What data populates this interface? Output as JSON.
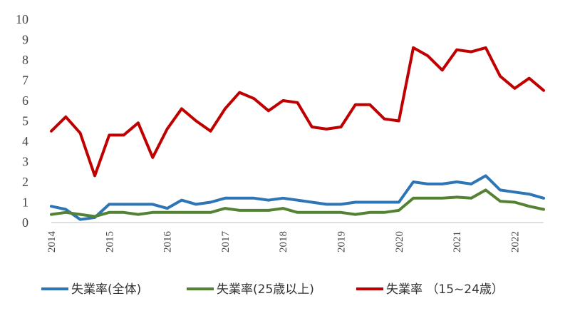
{
  "chart_data": {
    "type": "line",
    "title": "",
    "xlabel": "",
    "ylabel": "",
    "ylim": [
      0,
      10
    ],
    "yticks": [
      "0",
      "1",
      "2",
      "3",
      "4",
      "5",
      "6",
      "7",
      "8",
      "9",
      "10"
    ],
    "year_ticks": [
      "2014",
      "2015",
      "2016",
      "2017",
      "2018",
      "2019",
      "2020",
      "2021",
      "2022"
    ],
    "grid": false,
    "legend_position": "bottom",
    "x": [
      "2014Q1",
      "2014Q2",
      "2014Q3",
      "2014Q4",
      "2015Q1",
      "2015Q2",
      "2015Q3",
      "2015Q4",
      "2016Q1",
      "2016Q2",
      "2016Q3",
      "2016Q4",
      "2017Q1",
      "2017Q2",
      "2017Q3",
      "2017Q4",
      "2018Q1",
      "2018Q2",
      "2018Q3",
      "2018Q4",
      "2019Q1",
      "2019Q2",
      "2019Q3",
      "2019Q4",
      "2020Q1",
      "2020Q2",
      "2020Q3",
      "2020Q4",
      "2021Q1",
      "2021Q2",
      "2021Q3",
      "2021Q4",
      "2022Q1",
      "2022Q2",
      "2022Q3"
    ],
    "series": [
      {
        "name": "失業率(全体)",
        "color": "#2E75B6",
        "values": [
          0.8,
          0.65,
          0.15,
          0.25,
          0.9,
          0.9,
          0.9,
          0.9,
          0.7,
          1.1,
          0.9,
          1.0,
          1.2,
          1.2,
          1.2,
          1.1,
          1.2,
          1.1,
          1.0,
          0.9,
          0.9,
          1.0,
          1.0,
          1.0,
          1.0,
          2.0,
          1.9,
          1.9,
          2.0,
          1.9,
          2.3,
          1.6,
          1.5,
          1.4,
          1.2
        ]
      },
      {
        "name": "失業率(25歳以上)",
        "color": "#548235",
        "values": [
          0.4,
          0.5,
          0.4,
          0.3,
          0.5,
          0.5,
          0.4,
          0.5,
          0.5,
          0.5,
          0.5,
          0.5,
          0.7,
          0.6,
          0.6,
          0.6,
          0.7,
          0.5,
          0.5,
          0.5,
          0.5,
          0.4,
          0.5,
          0.5,
          0.6,
          1.2,
          1.2,
          1.2,
          1.25,
          1.2,
          1.6,
          1.05,
          1.0,
          0.8,
          0.65
        ]
      },
      {
        "name": "失業率 （15~24歳）",
        "color": "#C00000",
        "values": [
          4.5,
          5.2,
          4.4,
          2.3,
          4.3,
          4.3,
          4.9,
          3.2,
          4.6,
          5.6,
          5.0,
          4.5,
          5.6,
          6.4,
          6.1,
          5.5,
          6.0,
          5.9,
          4.7,
          4.6,
          4.7,
          5.8,
          5.8,
          5.1,
          5.0,
          8.6,
          8.2,
          7.5,
          8.5,
          8.4,
          8.6,
          7.2,
          6.6,
          7.1,
          6.5
        ]
      }
    ]
  }
}
